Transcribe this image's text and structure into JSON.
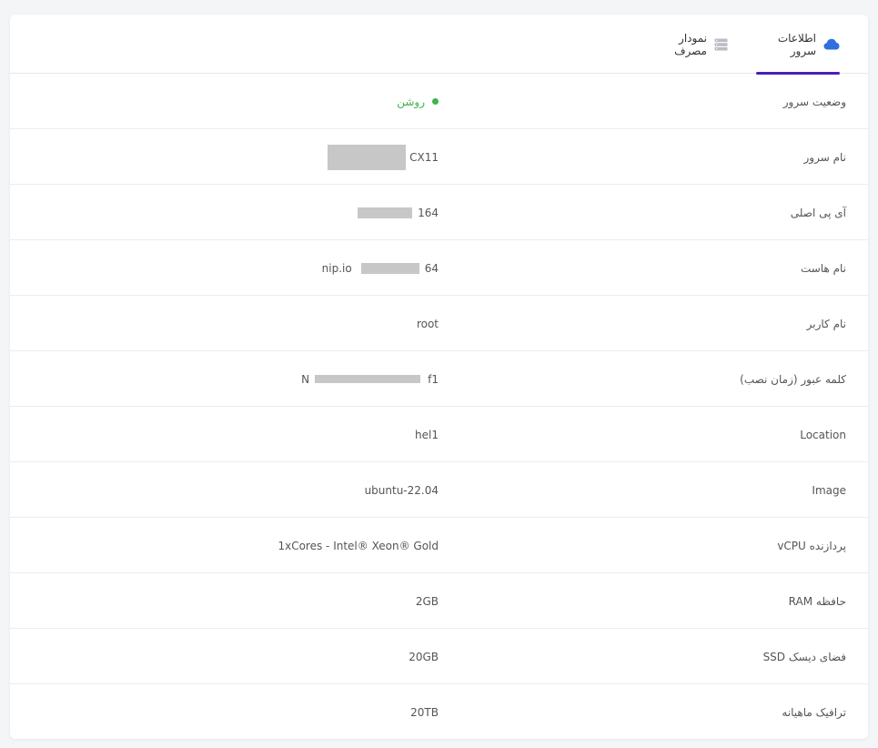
{
  "tabs": {
    "server_info": {
      "label": "اطلاعات سرور",
      "icon": "cloud-icon",
      "active": true
    },
    "usage_chart": {
      "label": "نمودار مصرف",
      "icon": "server-stack-icon",
      "active": false
    }
  },
  "colors": {
    "accent": "#4a1fb8",
    "status_on": "#3fb24f",
    "cloud_icon": "#2f6fe0",
    "redaction": "#c7c7c7"
  },
  "rows": {
    "status": {
      "label": "وضعیت سرور",
      "value": "روشن"
    },
    "server_name": {
      "label": "نام سرور",
      "value": "CX11"
    },
    "main_ip": {
      "label": "آی پی اصلی",
      "value": "164"
    },
    "hostname": {
      "label": "نام هاست",
      "value_start": "64",
      "value_end": "nip.io"
    },
    "username": {
      "label": "نام کاربر",
      "value": "root"
    },
    "password": {
      "label": "کلمه عبور (زمان نصب)",
      "value_start": "f1",
      "value_end": "N"
    },
    "location": {
      "label": "Location",
      "value": "hel1"
    },
    "image": {
      "label": "Image",
      "value": "ubuntu-22.04"
    },
    "cpu": {
      "label": "پردازنده vCPU",
      "value": "1xCores - Intel® Xeon® Gold"
    },
    "ram": {
      "label": "حافظه RAM",
      "value": "2GB"
    },
    "disk": {
      "label": "فضای دیسک SSD",
      "value": "20GB"
    },
    "traffic": {
      "label": "ترافیک ماهیانه",
      "value": "20TB"
    }
  }
}
